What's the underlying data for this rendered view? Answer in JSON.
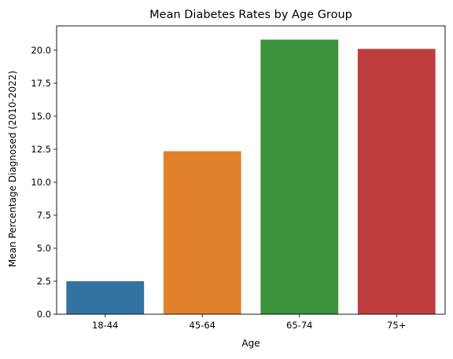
{
  "chart_data": {
    "type": "bar",
    "title": "Mean Diabetes Rates by Age Group",
    "xlabel": "Age",
    "ylabel": "Mean Percentage Diagnosed (2010-2022)",
    "categories": [
      "18-44",
      "45-64",
      "65-74",
      "75+"
    ],
    "values": [
      2.5,
      12.35,
      20.8,
      20.1
    ],
    "colors": [
      "#3274a1",
      "#e1812c",
      "#3a923a",
      "#c03d3e"
    ],
    "ylim": [
      0,
      21.84
    ],
    "yticks": [
      "0.0",
      "2.5",
      "5.0",
      "7.5",
      "10.0",
      "12.5",
      "15.0",
      "17.5",
      "20.0"
    ],
    "grid": false,
    "legend": "none"
  }
}
